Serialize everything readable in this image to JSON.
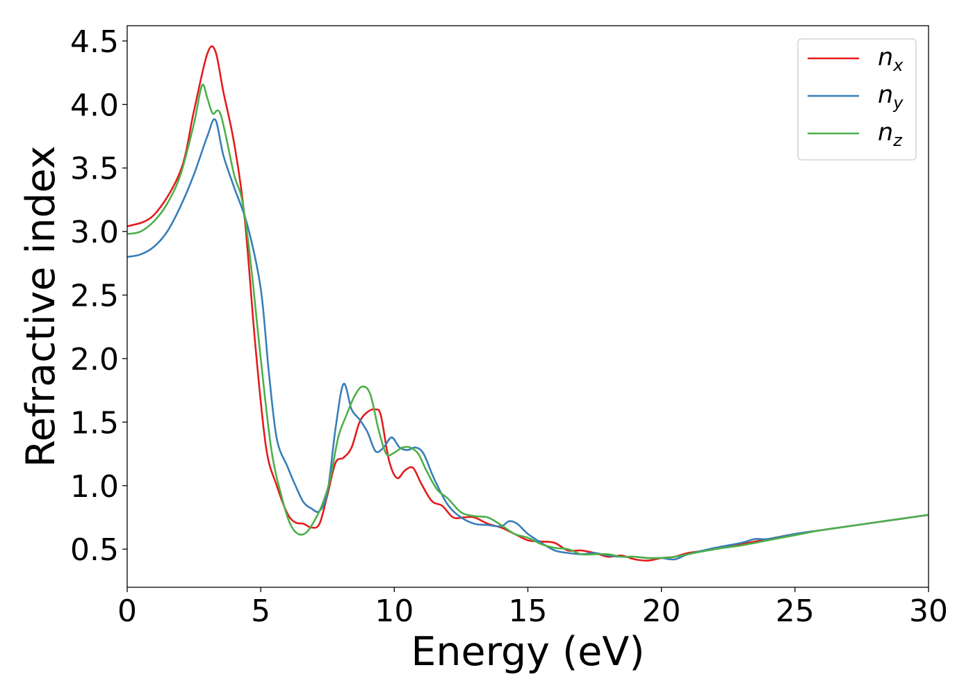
{
  "chart_data": {
    "type": "line",
    "xlabel": "Energy (eV)",
    "ylabel": "Refractive index",
    "xlim": [
      0,
      30
    ],
    "ylim": [
      0.2,
      4.62
    ],
    "xticks": [
      0,
      5,
      10,
      15,
      20,
      25,
      30
    ],
    "xtick_labels": [
      "0",
      "5",
      "10",
      "15",
      "20",
      "25",
      "30"
    ],
    "yticks": [
      0.5,
      1.0,
      1.5,
      2.0,
      2.5,
      3.0,
      3.5,
      4.0,
      4.5
    ],
    "ytick_labels": [
      "0.5",
      "1.0",
      "1.5",
      "2.0",
      "2.5",
      "3.0",
      "3.5",
      "4.0",
      "4.5"
    ],
    "grid": false,
    "legend_position": "top-right",
    "series": [
      {
        "name": "n_x",
        "label_base": "n",
        "label_sub": "x",
        "color": "#e41a1c",
        "x": [
          0,
          1,
          2,
          2.5,
          3,
          3.3,
          3.6,
          4,
          4.4,
          4.8,
          5.2,
          5.6,
          6,
          6.3,
          6.6,
          6.9,
          7.2,
          7.5,
          7.8,
          8.1,
          8.4,
          8.7,
          9.0,
          9.3,
          9.5,
          9.8,
          10.1,
          10.4,
          10.7,
          11.0,
          11.4,
          11.8,
          12.2,
          12.6,
          13.0,
          13.5,
          14.0,
          14.5,
          15.0,
          15.5,
          16.0,
          16.5,
          17.0,
          17.5,
          18.0,
          18.5,
          19.0,
          19.5,
          20.0,
          20.5,
          21.0,
          22.0,
          23.0,
          24.0,
          25.0,
          26.0,
          27.0,
          28.0,
          29.0,
          30.0
        ],
        "y": [
          3.04,
          3.13,
          3.48,
          3.95,
          4.4,
          4.42,
          4.1,
          3.7,
          3.1,
          2.1,
          1.3,
          1.0,
          0.78,
          0.71,
          0.7,
          0.67,
          0.7,
          0.93,
          1.18,
          1.22,
          1.3,
          1.5,
          1.58,
          1.6,
          1.55,
          1.2,
          1.06,
          1.12,
          1.14,
          1.02,
          0.88,
          0.84,
          0.75,
          0.75,
          0.75,
          0.7,
          0.67,
          0.62,
          0.57,
          0.56,
          0.55,
          0.49,
          0.49,
          0.47,
          0.44,
          0.45,
          0.42,
          0.41,
          0.43,
          0.44,
          0.47,
          0.5,
          0.54,
          0.58,
          0.62,
          0.65,
          0.68,
          0.71,
          0.74,
          0.77
        ]
      },
      {
        "name": "n_y",
        "label_base": "n",
        "label_sub": "y",
        "color": "#377eb8",
        "x": [
          0,
          0.5,
          1,
          1.5,
          2,
          2.5,
          3,
          3.3,
          3.6,
          4,
          4.5,
          5,
          5.3,
          5.6,
          6,
          6.3,
          6.6,
          6.9,
          7.2,
          7.5,
          7.8,
          8.1,
          8.4,
          8.7,
          9.0,
          9.3,
          9.6,
          9.9,
          10.2,
          10.5,
          10.8,
          11.1,
          11.5,
          12.0,
          12.5,
          13.0,
          13.5,
          14.0,
          14.3,
          14.6,
          15.0,
          15.5,
          16.0,
          16.5,
          17.0,
          17.5,
          18.0,
          18.5,
          19.0,
          19.5,
          20.0,
          20.5,
          21.0,
          22.0,
          23.0,
          23.5,
          24.0,
          25.0,
          26.0,
          27.0,
          28.0,
          29.0,
          30.0
        ],
        "y": [
          2.8,
          2.82,
          2.88,
          3.0,
          3.2,
          3.45,
          3.75,
          3.88,
          3.6,
          3.35,
          3.05,
          2.55,
          1.9,
          1.37,
          1.15,
          1.0,
          0.87,
          0.82,
          0.8,
          0.95,
          1.45,
          1.8,
          1.6,
          1.52,
          1.42,
          1.27,
          1.3,
          1.38,
          1.3,
          1.28,
          1.3,
          1.25,
          1.05,
          0.85,
          0.75,
          0.7,
          0.69,
          0.68,
          0.72,
          0.7,
          0.62,
          0.55,
          0.49,
          0.47,
          0.46,
          0.47,
          0.45,
          0.44,
          0.44,
          0.43,
          0.43,
          0.42,
          0.46,
          0.51,
          0.55,
          0.58,
          0.58,
          0.62,
          0.65,
          0.68,
          0.71,
          0.74,
          0.77
        ]
      },
      {
        "name": "n_z",
        "label_base": "n",
        "label_sub": "z",
        "color": "#4daf4a",
        "x": [
          0,
          0.5,
          1,
          1.5,
          2,
          2.5,
          2.8,
          3.0,
          3.2,
          3.5,
          4.0,
          4.3,
          4.6,
          5.0,
          5.4,
          5.8,
          6.1,
          6.4,
          6.7,
          7.0,
          7.3,
          7.6,
          7.9,
          8.2,
          8.5,
          8.8,
          9.1,
          9.4,
          9.7,
          10.0,
          10.3,
          10.6,
          10.9,
          11.2,
          11.6,
          12.0,
          12.5,
          13.0,
          13.5,
          14.0,
          14.5,
          15.0,
          15.5,
          16.0,
          16.5,
          17.0,
          17.5,
          18.0,
          18.5,
          19.0,
          19.5,
          20.0,
          20.5,
          21.0,
          22.0,
          23.0,
          24.0,
          25.0,
          26.0,
          27.0,
          28.0,
          29.0,
          30.0
        ],
        "y": [
          2.98,
          3.0,
          3.08,
          3.22,
          3.45,
          3.85,
          4.15,
          4.05,
          3.93,
          3.92,
          3.45,
          3.25,
          2.8,
          2.0,
          1.28,
          0.9,
          0.7,
          0.62,
          0.63,
          0.72,
          0.85,
          1.05,
          1.38,
          1.55,
          1.7,
          1.78,
          1.72,
          1.45,
          1.25,
          1.26,
          1.3,
          1.3,
          1.25,
          1.12,
          0.97,
          0.9,
          0.79,
          0.76,
          0.75,
          0.69,
          0.62,
          0.59,
          0.54,
          0.51,
          0.5,
          0.46,
          0.46,
          0.46,
          0.44,
          0.44,
          0.43,
          0.43,
          0.44,
          0.46,
          0.5,
          0.53,
          0.57,
          0.61,
          0.65,
          0.68,
          0.71,
          0.74,
          0.77
        ]
      }
    ]
  }
}
